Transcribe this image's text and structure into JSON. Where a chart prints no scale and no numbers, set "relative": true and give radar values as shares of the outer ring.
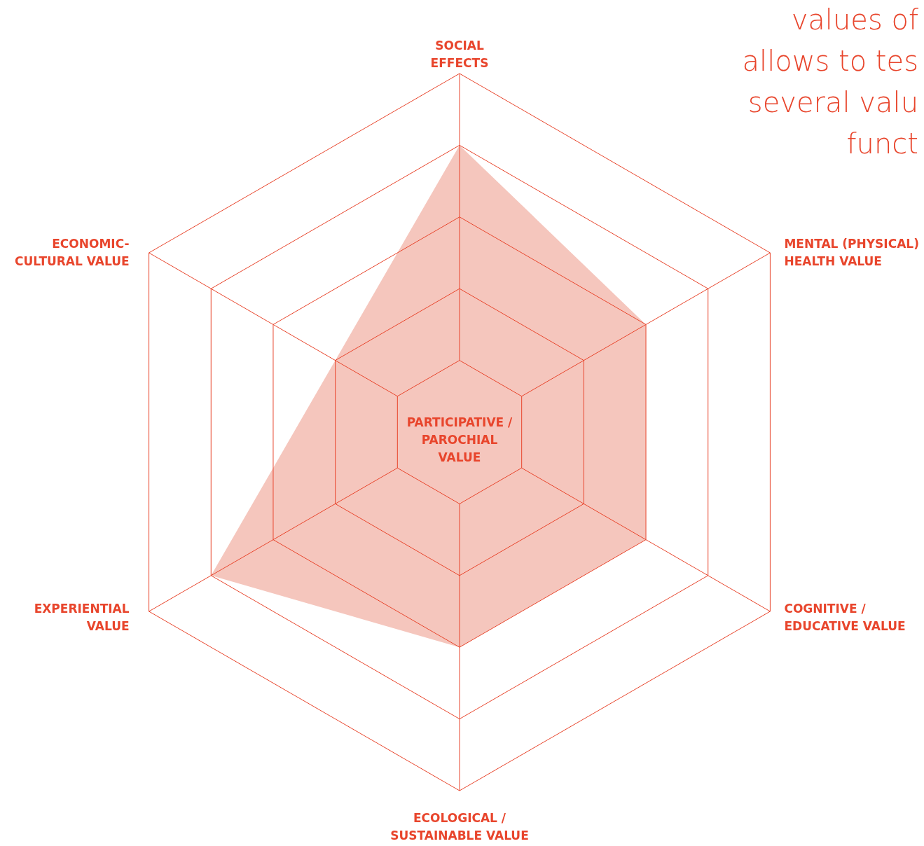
{
  "chart_data": {
    "type": "radar",
    "relative": true,
    "title": "PARTICIPATIVE /\nPAROCHIAL\nVALUE",
    "categories": [
      "SOCIAL\nEFFECTS",
      "MENTAL (PHYSICAL)\nHEALTH VALUE",
      "COGNITIVE /\nEDUCATIVE VALUE",
      "ECOLOGICAL /\nSUSTAINABLE VALUE",
      "EXPERIENTIAL\nVALUE",
      "ECONOMIC-\nCULTURAL VALUE"
    ],
    "series": [
      {
        "color": "#f5c6bd",
        "values": [
          0.8,
          0.6,
          0.6,
          0.6,
          0.8,
          0.4
        ]
      }
    ],
    "annotations": [
      "values of",
      "allows to tes",
      "several valu",
      "funct"
    ]
  }
}
